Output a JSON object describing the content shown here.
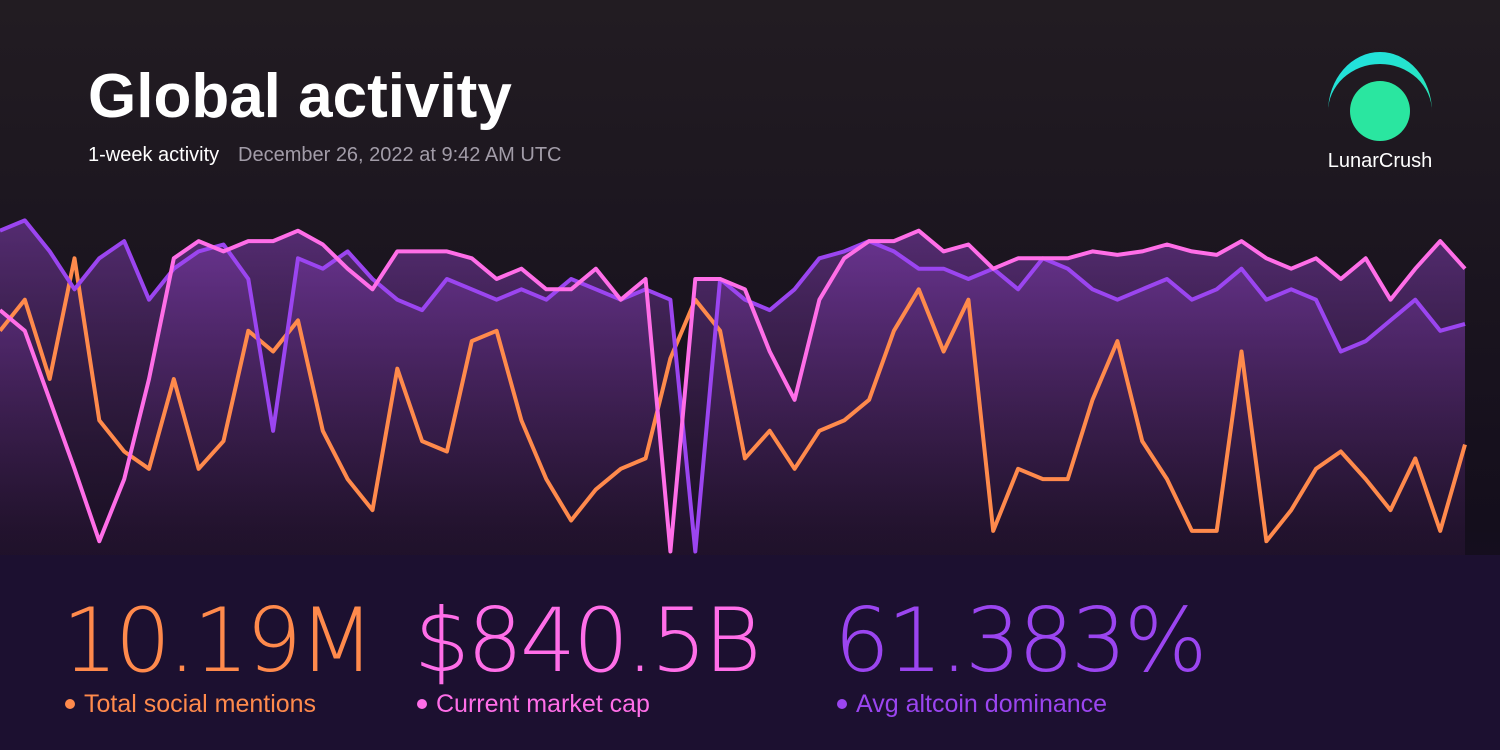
{
  "header": {
    "title": "Global activity",
    "period": "1-week activity",
    "timestamp": "December 26, 2022 at 9:42 AM UTC",
    "brand": "LunarCrush"
  },
  "stats": [
    "10.19M",
    "$840.5B",
    "61.383%"
  ],
  "chart_data": {
    "type": "line",
    "ylim": [
      0,
      100
    ],
    "series": [
      {
        "name": "Total social mentions",
        "color": "#ff8a4c",
        "values": [
          65,
          74,
          51,
          86,
          39,
          30,
          25,
          51,
          25,
          33,
          65,
          59,
          68,
          36,
          22,
          13,
          54,
          33,
          30,
          62,
          65,
          39,
          22,
          10,
          19,
          25,
          28,
          57,
          74,
          65,
          28,
          36,
          25,
          36,
          39,
          45,
          65,
          77,
          59,
          74,
          7,
          25,
          22,
          22,
          45,
          62,
          33,
          22,
          7,
          7,
          59,
          4,
          13,
          25,
          30,
          22,
          13,
          28,
          7,
          32
        ]
      },
      {
        "name": "Current market cap",
        "color": "#ff6ee8",
        "values": [
          71,
          65,
          45,
          25,
          4,
          22,
          51,
          86,
          91,
          88,
          91,
          91,
          94,
          90,
          83,
          77,
          88,
          88,
          88,
          86,
          80,
          83,
          77,
          77,
          83,
          74,
          80,
          1,
          80,
          80,
          77,
          59,
          45,
          74,
          86,
          91,
          91,
          94,
          88,
          90,
          83,
          86,
          86,
          86,
          88,
          87,
          88,
          90,
          88,
          87,
          91,
          86,
          83,
          86,
          80,
          86,
          74,
          83,
          91,
          83
        ]
      },
      {
        "name": "Avg altcoin dominance",
        "color": "#9b45f0",
        "values": [
          94,
          97,
          88,
          77,
          86,
          91,
          74,
          83,
          88,
          90,
          80,
          36,
          86,
          83,
          88,
          80,
          74,
          71,
          80,
          77,
          74,
          77,
          74,
          80,
          77,
          74,
          77,
          74,
          1,
          80,
          74,
          71,
          77,
          86,
          88,
          91,
          88,
          83,
          83,
          80,
          83,
          77,
          86,
          83,
          77,
          74,
          77,
          80,
          74,
          77,
          83,
          74,
          77,
          74,
          59,
          62,
          68,
          74,
          65,
          67
        ]
      }
    ]
  }
}
